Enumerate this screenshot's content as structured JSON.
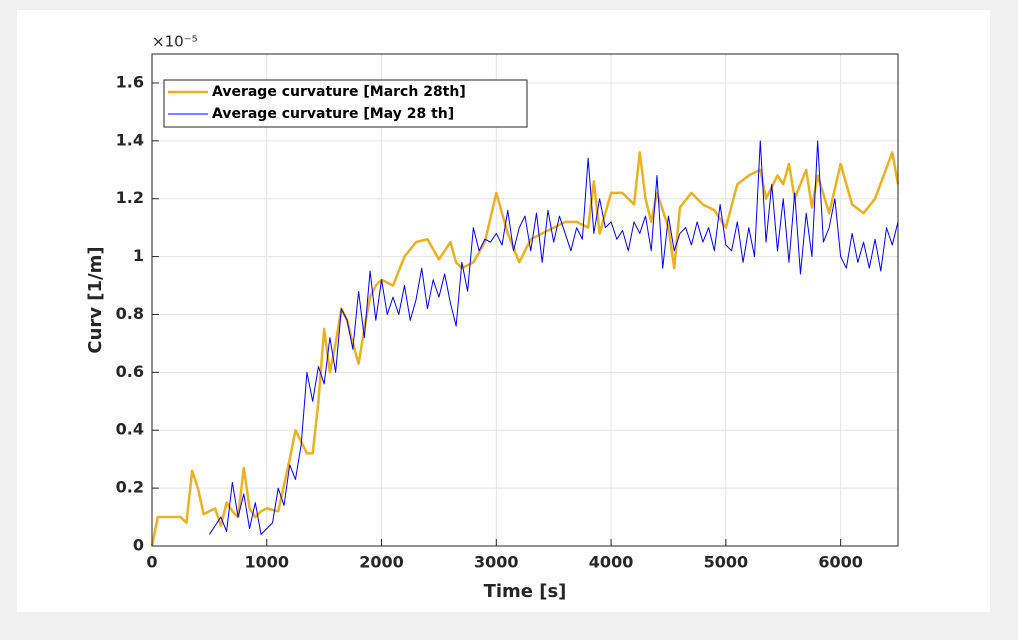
{
  "chart_data": {
    "type": "line",
    "xlabel": "Time [s]",
    "ylabel": "Curv [1/m]",
    "y_multiplier": "×10⁻⁵",
    "xlim": [
      0,
      6500
    ],
    "xticks": [
      0,
      1000,
      2000,
      3000,
      4000,
      5000,
      6000
    ],
    "ylim": [
      0,
      1.7
    ],
    "yticks": [
      0,
      0.2,
      0.4,
      0.6,
      0.8,
      1,
      1.2,
      1.4,
      1.6
    ],
    "grid": true,
    "legend": "upper left",
    "series": [
      {
        "name": "Average curvature [March 28th]",
        "color": "#edb120",
        "width": 2.5,
        "x": [
          0,
          50,
          100,
          200,
          250,
          300,
          350,
          400,
          450,
          550,
          600,
          650,
          700,
          750,
          800,
          850,
          900,
          950,
          1000,
          1100,
          1200,
          1250,
          1300,
          1350,
          1400,
          1450,
          1500,
          1550,
          1600,
          1650,
          1700,
          1750,
          1800,
          1850,
          1900,
          1950,
          2000,
          2100,
          2200,
          2300,
          2400,
          2500,
          2600,
          2650,
          2700,
          2800,
          2900,
          3000,
          3100,
          3200,
          3300,
          3400,
          3500,
          3600,
          3700,
          3800,
          3850,
          3900,
          4000,
          4100,
          4200,
          4250,
          4300,
          4350,
          4400,
          4500,
          4550,
          4600,
          4700,
          4800,
          4900,
          5000,
          5100,
          5200,
          5300,
          5350,
          5450,
          5500,
          5550,
          5600,
          5700,
          5750,
          5800,
          5900,
          6000,
          6100,
          6200,
          6300,
          6450,
          6500
        ],
        "values": [
          0,
          0.1,
          0.1,
          0.1,
          0.1,
          0.08,
          0.26,
          0.2,
          0.11,
          0.13,
          0.07,
          0.15,
          0.12,
          0.1,
          0.27,
          0.13,
          0.1,
          0.12,
          0.13,
          0.12,
          0.3,
          0.4,
          0.36,
          0.32,
          0.32,
          0.5,
          0.75,
          0.6,
          0.7,
          0.82,
          0.78,
          0.7,
          0.63,
          0.75,
          0.86,
          0.9,
          0.92,
          0.9,
          1.0,
          1.05,
          1.06,
          0.99,
          1.05,
          0.98,
          0.96,
          0.98,
          1.05,
          1.22,
          1.08,
          0.98,
          1.06,
          1.08,
          1.1,
          1.12,
          1.12,
          1.1,
          1.26,
          1.08,
          1.22,
          1.22,
          1.18,
          1.36,
          1.2,
          1.12,
          1.22,
          1.1,
          0.96,
          1.17,
          1.22,
          1.18,
          1.16,
          1.1,
          1.25,
          1.28,
          1.3,
          1.2,
          1.28,
          1.25,
          1.32,
          1.2,
          1.3,
          1.17,
          1.28,
          1.15,
          1.32,
          1.18,
          1.15,
          1.2,
          1.36,
          1.25
        ]
      },
      {
        "name": "Average curvature [May 28 th]",
        "color": "#0000ff",
        "width": 1,
        "x": [
          500,
          550,
          600,
          650,
          700,
          750,
          800,
          850,
          900,
          950,
          1000,
          1050,
          1100,
          1150,
          1200,
          1250,
          1300,
          1350,
          1400,
          1450,
          1500,
          1550,
          1600,
          1650,
          1700,
          1750,
          1800,
          1850,
          1900,
          1950,
          2000,
          2050,
          2100,
          2150,
          2200,
          2250,
          2300,
          2350,
          2400,
          2450,
          2500,
          2550,
          2600,
          2650,
          2700,
          2750,
          2800,
          2850,
          2900,
          2950,
          3000,
          3050,
          3100,
          3150,
          3200,
          3250,
          3300,
          3350,
          3400,
          3450,
          3500,
          3550,
          3600,
          3650,
          3700,
          3750,
          3800,
          3850,
          3900,
          3950,
          4000,
          4050,
          4100,
          4150,
          4200,
          4250,
          4300,
          4350,
          4400,
          4450,
          4500,
          4550,
          4600,
          4650,
          4700,
          4750,
          4800,
          4850,
          4900,
          4950,
          5000,
          5050,
          5100,
          5150,
          5200,
          5250,
          5300,
          5350,
          5400,
          5450,
          5500,
          5550,
          5600,
          5650,
          5700,
          5750,
          5800,
          5850,
          5900,
          5950,
          6000,
          6050,
          6100,
          6150,
          6200,
          6250,
          6300,
          6350,
          6400,
          6450,
          6500
        ],
        "values": [
          0.04,
          0.07,
          0.1,
          0.05,
          0.22,
          0.1,
          0.18,
          0.06,
          0.15,
          0.04,
          0.06,
          0.08,
          0.2,
          0.14,
          0.28,
          0.23,
          0.35,
          0.6,
          0.5,
          0.62,
          0.56,
          0.72,
          0.6,
          0.82,
          0.78,
          0.68,
          0.88,
          0.72,
          0.95,
          0.78,
          0.92,
          0.8,
          0.86,
          0.8,
          0.9,
          0.78,
          0.85,
          0.96,
          0.82,
          0.92,
          0.86,
          0.94,
          0.84,
          0.76,
          0.98,
          0.88,
          1.1,
          1.02,
          1.06,
          1.05,
          1.08,
          1.04,
          1.16,
          1.02,
          1.1,
          1.14,
          1.02,
          1.15,
          0.98,
          1.16,
          1.05,
          1.14,
          1.08,
          1.02,
          1.1,
          1.06,
          1.34,
          1.08,
          1.2,
          1.1,
          1.12,
          1.06,
          1.09,
          1.02,
          1.12,
          1.08,
          1.14,
          1.02,
          1.28,
          0.96,
          1.14,
          1.02,
          1.08,
          1.1,
          1.04,
          1.12,
          1.05,
          1.1,
          1.02,
          1.18,
          1.04,
          1.02,
          1.12,
          0.98,
          1.1,
          1.0,
          1.4,
          1.05,
          1.25,
          1.02,
          1.2,
          0.98,
          1.22,
          0.94,
          1.15,
          1.0,
          1.4,
          1.05,
          1.1,
          1.2,
          1.0,
          0.96,
          1.08,
          0.98,
          1.05,
          0.96,
          1.06,
          0.95,
          1.1,
          1.04,
          1.12
        ]
      }
    ]
  }
}
